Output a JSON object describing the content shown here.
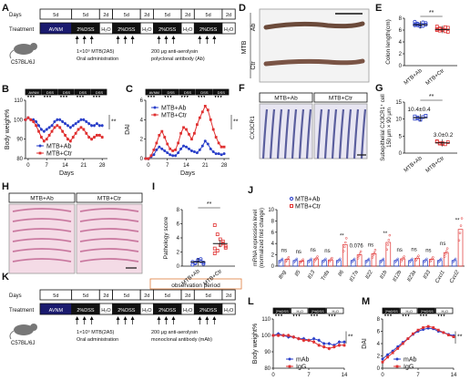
{
  "panel_letters": [
    "A",
    "B",
    "C",
    "D",
    "E",
    "F",
    "G",
    "H",
    "I",
    "J",
    "K",
    "L",
    "M"
  ],
  "row_labels": {
    "days": "Days",
    "treatment": "Treatment"
  },
  "timeline_a": {
    "days": [
      "5d",
      "5d",
      "2d",
      "5d",
      "2d",
      "5d",
      "2d",
      "5d",
      "2d"
    ],
    "treatment": [
      "AVNM",
      "2%DSS",
      "H₂O",
      "2%DSS",
      "H₂O",
      "2%DSS",
      "H₂O",
      "2%DSS",
      "H₂O"
    ],
    "mouse": "C57BL/6J",
    "note_mtb": "1×10⁹ MTB(2A5)\nOral administration",
    "note_ab": "200 μg anti-aerolysin\npolyclonal antibody (Ab)"
  },
  "timeline_k": {
    "days": [
      "5d",
      "5d",
      "2d",
      "5d",
      "2d",
      "5d",
      "2d",
      "5d",
      "2d"
    ],
    "treatment": [
      "AVNM",
      "2%DSS",
      "H₂O",
      "2%DSS",
      "H₂O",
      "2%DSS",
      "H₂O",
      "2%DSS",
      "H₂O"
    ],
    "mouse": "C57BL/6J",
    "note_mtb": "1×10⁹ MTB(2A5)\nOral administration",
    "note_mab": "200 μg anti-aerolysin\nmonoclonal antibody (mAb)",
    "observation": "observation period"
  },
  "mini_timeline": {
    "labels_b": [
      "AVNM",
      "DSS",
      "DSS",
      "DSS",
      "DSS"
    ],
    "labels_l": [
      "2%DSS",
      "H₂O",
      "2%DSS",
      "H₂O"
    ]
  },
  "panel_d": {
    "rows": [
      "Ab",
      "Ctr"
    ],
    "group": "MTB"
  },
  "panel_f": {
    "cols": [
      "MTB+Ab",
      "MTB+Ctr"
    ],
    "stain": "CX3CR1"
  },
  "panel_h": {
    "cols": [
      "MTB+Ab",
      "MTB+Ctr"
    ]
  },
  "colors": {
    "ab": "#2a3fc9",
    "ctr": "#e03030",
    "mab": "#2a3fc9",
    "igg": "#e03030",
    "black": "#111111"
  },
  "chart_data": [
    {
      "id": "B",
      "type": "line",
      "ylabel": "Body weight%",
      "xlabel": "Days",
      "ylim": [
        80,
        110
      ],
      "yticks": [
        80,
        90,
        100,
        110
      ],
      "xlim": [
        -1,
        30
      ],
      "xticks": [
        0,
        7,
        14,
        21,
        28
      ],
      "series": [
        {
          "name": "MTB+Ab",
          "x": [
            -1,
            0,
            1,
            2,
            3,
            4,
            5,
            6,
            7,
            8,
            9,
            10,
            11,
            12,
            13,
            14,
            15,
            16,
            17,
            18,
            19,
            20,
            21,
            22,
            23,
            24,
            25,
            26,
            27,
            28
          ],
          "values": [
            100,
            101,
            100,
            100,
            99,
            97,
            95,
            94,
            95,
            96,
            97,
            99,
            100,
            100,
            99,
            98,
            97,
            96,
            97,
            98,
            99,
            100,
            100,
            99,
            98,
            97,
            97,
            98,
            97,
            97
          ]
        },
        {
          "name": "MTB+Ctr",
          "x": [
            -1,
            0,
            1,
            2,
            3,
            4,
            5,
            6,
            7,
            8,
            9,
            10,
            11,
            12,
            13,
            14,
            15,
            16,
            17,
            18,
            19,
            20,
            21,
            22,
            23,
            24,
            25,
            26,
            27,
            28
          ],
          "values": [
            100,
            101,
            100,
            99,
            97,
            94,
            91,
            89,
            90,
            92,
            94,
            96,
            97,
            96,
            94,
            92,
            90,
            89,
            91,
            93,
            95,
            96,
            95,
            93,
            91,
            90,
            91,
            92,
            92,
            91
          ]
        }
      ],
      "sig": "**"
    },
    {
      "id": "C",
      "type": "line",
      "ylabel": "DAI",
      "xlabel": "Days",
      "ylim": [
        0,
        6
      ],
      "yticks": [
        0,
        2,
        4,
        6
      ],
      "xlim": [
        -1,
        30
      ],
      "xticks": [
        0,
        7,
        14,
        21,
        28
      ],
      "series": [
        {
          "name": "MTB+Ab",
          "x": [
            -1,
            0,
            1,
            2,
            3,
            4,
            5,
            6,
            7,
            8,
            9,
            10,
            11,
            12,
            13,
            14,
            15,
            16,
            17,
            18,
            19,
            20,
            21,
            22,
            23,
            24,
            25,
            26,
            27,
            28
          ],
          "values": [
            0,
            0,
            0.2,
            0.4,
            0.9,
            1.2,
            1.0,
            0.8,
            0.6,
            0.4,
            0.3,
            0.3,
            0.6,
            1.0,
            1.3,
            1.2,
            1.0,
            0.8,
            0.7,
            0.6,
            0.9,
            1.3,
            1.8,
            1.5,
            1.0,
            0.7,
            0.5,
            0.5,
            0.4,
            0.5
          ]
        },
        {
          "name": "MTB+Ctr",
          "x": [
            -1,
            0,
            1,
            2,
            3,
            4,
            5,
            6,
            7,
            8,
            9,
            10,
            11,
            12,
            13,
            14,
            15,
            16,
            17,
            18,
            19,
            20,
            21,
            22,
            23,
            24,
            25,
            26,
            27,
            28
          ],
          "values": [
            0,
            0,
            0.3,
            0.9,
            1.6,
            2.4,
            2.8,
            2.2,
            1.5,
            1.0,
            0.8,
            0.9,
            1.6,
            2.6,
            3.2,
            3.0,
            2.5,
            2.0,
            2.6,
            3.5,
            4.2,
            4.8,
            5.4,
            5.0,
            4.0,
            3.0,
            2.2,
            1.6,
            1.2,
            1.2
          ]
        }
      ],
      "sig": "**"
    },
    {
      "id": "E",
      "type": "scatter",
      "ylabel": "Colon length(cm)",
      "ylim": [
        0,
        8
      ],
      "yticks": [
        0,
        2,
        4,
        6,
        8
      ],
      "categories": [
        "MTB+Ab",
        "MTB+Ctr"
      ],
      "means": [
        6.9,
        6.1
      ],
      "points": [
        [
          7.4,
          7.1,
          6.9,
          6.7,
          7.2,
          6.8,
          7.0,
          6.6,
          7.3,
          6.9,
          7.0,
          6.8
        ],
        [
          6.6,
          6.3,
          6.0,
          5.8,
          6.4,
          6.1,
          5.9,
          6.2,
          6.5,
          5.7,
          6.0,
          6.2
        ]
      ],
      "sig": "**"
    },
    {
      "id": "G",
      "type": "scatter",
      "ylabel": "Subepithelial CX3CR1⁺ cell/150 μm × 90 μm",
      "ylim": [
        0,
        15
      ],
      "yticks": [
        0,
        5,
        10,
        15
      ],
      "categories": [
        "MTB+Ab",
        "MTB+Ctr"
      ],
      "means": [
        10.4,
        3.0
      ],
      "mean_labels": [
        "10.4±0.4",
        "3.0±0.2"
      ],
      "points": [
        [
          10.8,
          10.2,
          9.9,
          10.6,
          11.0,
          10.1,
          10.5,
          9.8
        ],
        [
          3.4,
          2.8,
          3.0,
          2.6,
          3.2,
          3.5,
          2.9,
          2.7
        ]
      ],
      "sig": "**"
    },
    {
      "id": "I",
      "type": "scatter",
      "ylabel": "Pathology score",
      "ylim": [
        0,
        8
      ],
      "yticks": [
        0,
        2,
        4,
        6,
        8
      ],
      "categories": [
        "MTB+Ab",
        "MTB+Ctr"
      ],
      "means": [
        0.6,
        3.2
      ],
      "points": [
        [
          0.2,
          0.5,
          0.8,
          1.0,
          0.3,
          0.6,
          0.4,
          0.9,
          0.7,
          0.5
        ],
        [
          5.8,
          4.5,
          3.8,
          3.2,
          2.8,
          2.5,
          2.2,
          3.0,
          3.5,
          2.6,
          1.8
        ]
      ],
      "sig": "**"
    },
    {
      "id": "J",
      "type": "bar",
      "ylabel": "mRNA expression level\n(normalized fold change)",
      "ylim": [
        0,
        10
      ],
      "yticks": [
        0,
        2,
        4,
        6,
        8,
        10
      ],
      "categories": [
        "Ifng",
        "Il5",
        "Il13",
        "Tnfa",
        "Il6",
        "Il17a",
        "Il22",
        "Il1b",
        "Il12b",
        "Il23a",
        "Il33",
        "Cxcl1",
        "Cxcl2"
      ],
      "series": [
        {
          "name": "MTB+Ab",
          "values": [
            1.0,
            1.0,
            1.0,
            1.0,
            1.0,
            1.0,
            1.0,
            1.0,
            1.0,
            1.0,
            1.0,
            1.0,
            1.0
          ]
        },
        {
          "name": "MTB+Ctr",
          "values": [
            1.2,
            0.9,
            1.3,
            1.1,
            3.8,
            2.0,
            2.2,
            4.2,
            1.3,
            1.4,
            1.2,
            2.4,
            6.5
          ]
        }
      ],
      "annotations": [
        "ns",
        "ns",
        "ns",
        "ns",
        "**",
        "0.076",
        "ns",
        "**",
        "ns",
        "ns",
        "ns",
        "ns",
        "**"
      ]
    },
    {
      "id": "L",
      "type": "line",
      "ylabel": "Body weight%",
      "xlabel": "",
      "ylim": [
        80,
        110
      ],
      "yticks": [
        80,
        90,
        100,
        110
      ],
      "xlim": [
        0,
        14
      ],
      "xticks": [
        0,
        7,
        14
      ],
      "series": [
        {
          "name": "mAb",
          "x": [
            0,
            1,
            2,
            3,
            4,
            5,
            6,
            7,
            8,
            9,
            10,
            11,
            12,
            13,
            14
          ],
          "values": [
            100,
            101,
            100,
            99,
            99,
            98,
            98,
            97,
            98,
            97,
            95,
            95,
            94,
            96,
            96
          ]
        },
        {
          "name": "IgG",
          "x": [
            0,
            1,
            2,
            3,
            4,
            5,
            6,
            7,
            8,
            9,
            10,
            11,
            12,
            13,
            14
          ],
          "values": [
            100,
            100,
            100,
            100,
            99,
            98,
            97,
            97,
            96,
            94,
            93,
            92,
            93,
            94,
            94
          ]
        }
      ],
      "sig": "**"
    },
    {
      "id": "M",
      "type": "line",
      "ylabel": "DAI",
      "xlabel": "",
      "ylim": [
        0,
        8
      ],
      "yticks": [
        0,
        2,
        4,
        6,
        8
      ],
      "xlim": [
        0,
        14
      ],
      "xticks": [
        0,
        7,
        14
      ],
      "series": [
        {
          "name": "mAb",
          "x": [
            0,
            1,
            2,
            3,
            4,
            5,
            6,
            7,
            8,
            9,
            10,
            11,
            12,
            13,
            14
          ],
          "values": [
            1.5,
            2.2,
            2.8,
            3.5,
            4.2,
            4.8,
            5.5,
            6.0,
            6.3,
            6.5,
            6.4,
            6.0,
            5.8,
            5.5,
            5.3
          ]
        },
        {
          "name": "IgG",
          "x": [
            0,
            1,
            2,
            3,
            4,
            5,
            6,
            7,
            8,
            9,
            10,
            11,
            12,
            13,
            14
          ],
          "values": [
            1.0,
            1.8,
            2.5,
            3.2,
            4.0,
            4.8,
            5.6,
            6.2,
            6.6,
            6.8,
            6.6,
            6.2,
            5.8,
            5.4,
            5.1
          ]
        }
      ],
      "sig": "**"
    }
  ]
}
